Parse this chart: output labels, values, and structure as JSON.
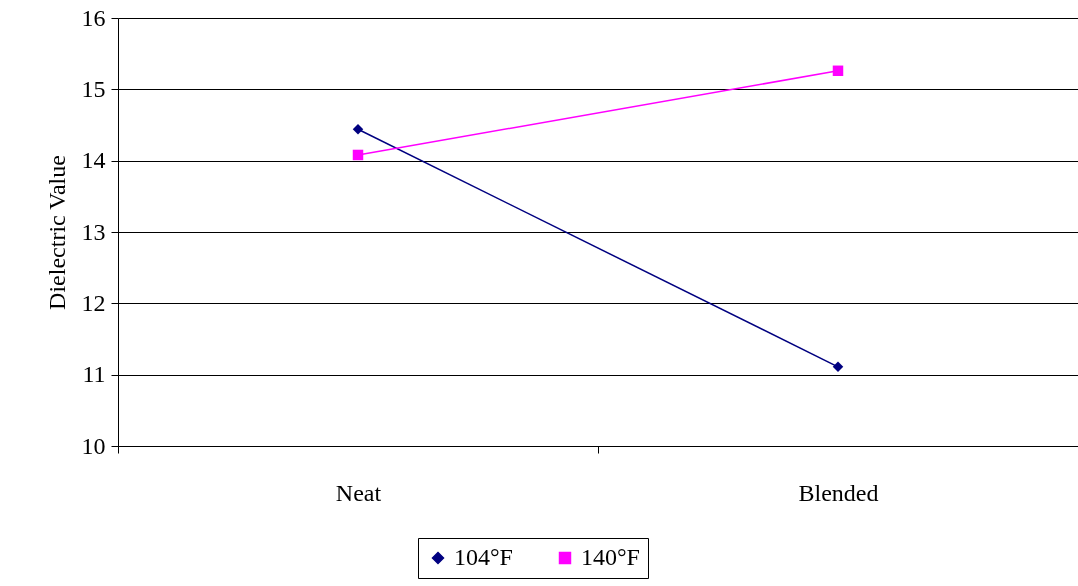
{
  "chart_data": {
    "type": "line",
    "ylabel": "Dielectric Value",
    "categories": [
      "Neat",
      "Blended"
    ],
    "series": [
      {
        "name": "104°F",
        "color": "#000080",
        "marker": "diamond",
        "values": [
          14.44,
          11.11
        ]
      },
      {
        "name": "140°F",
        "color": "#ff00ff",
        "marker": "square",
        "values": [
          14.08,
          15.26
        ]
      }
    ],
    "ylim": [
      10,
      16
    ],
    "yticks": [
      10,
      11,
      12,
      13,
      14,
      15,
      16
    ],
    "grid": "y",
    "legend": "bottom"
  }
}
